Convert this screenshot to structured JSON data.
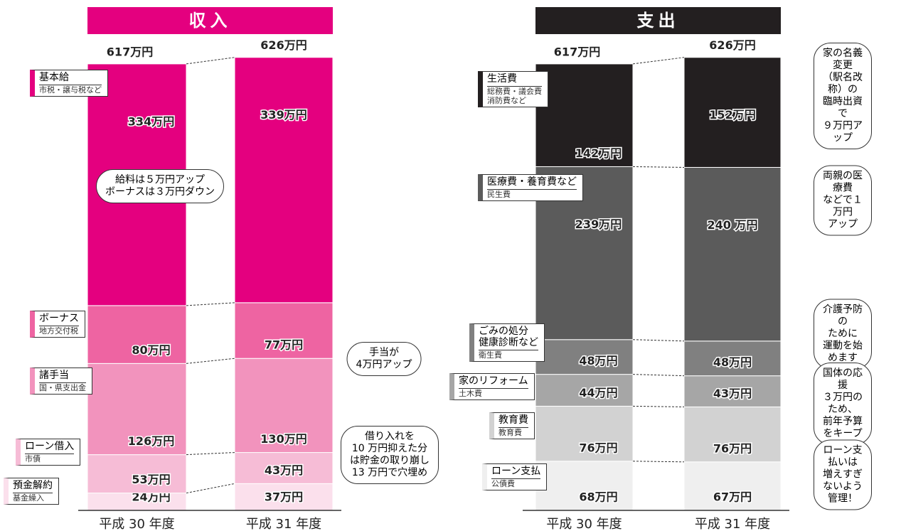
{
  "chart_data": [
    {
      "type": "stacked_bar",
      "title": "収入",
      "categories": [
        "平成 30 年度",
        "平成 31 年度"
      ],
      "totals": [
        617,
        626
      ],
      "total_labels": [
        "617万円",
        "626万円"
      ],
      "series": [
        {
          "name": "預金解約",
          "subtitle": "基金繰入",
          "color": "#fbe0ec",
          "values": [
            24,
            37
          ],
          "value_labels": [
            "24万円",
            "37万円"
          ]
        },
        {
          "name": "ローン借入",
          "subtitle": "市債",
          "color": "#f6bcd6",
          "values": [
            53,
            43
          ],
          "value_labels": [
            "53万円",
            "43万円"
          ]
        },
        {
          "name": "諸手当",
          "subtitle": "国・県支出金",
          "color": "#f293bd",
          "values": [
            126,
            130
          ],
          "value_labels": [
            "126万円",
            "130万円"
          ]
        },
        {
          "name": "ボーナス",
          "subtitle": "地方交付税",
          "color": "#ee64a2",
          "values": [
            80,
            77
          ],
          "value_labels": [
            "80万円",
            "77万円"
          ]
        },
        {
          "name": "基本給",
          "subtitle": "市税・譲与税など",
          "color": "#e4007f",
          "values": [
            334,
            339
          ],
          "value_labels": [
            "334万円",
            "339万円"
          ]
        }
      ],
      "annotations": [
        "給料は５万円アップ\nボーナスは３万円ダウン",
        "手当が\n4万円アップ",
        "借り入れを\n10 万円抑えた分\nは貯金の取り崩し\n13 万円で穴埋め"
      ]
    },
    {
      "type": "stacked_bar",
      "title": "支出",
      "categories": [
        "平成 30 年度",
        "平成 31 年度"
      ],
      "totals": [
        617,
        626
      ],
      "total_labels": [
        "617万円",
        "626万円"
      ],
      "series": [
        {
          "name": "ローン支払",
          "subtitle": "公債費",
          "color": "#efefef",
          "values": [
            68,
            67
          ],
          "value_labels": [
            "68万円",
            "67万円"
          ]
        },
        {
          "name": "教育費",
          "subtitle": "教育費",
          "color": "#d2d2d2",
          "values": [
            76,
            76
          ],
          "value_labels": [
            "76万円",
            "76万円"
          ]
        },
        {
          "name": "家のリフォーム",
          "subtitle": "土木費",
          "color": "#a6a6a6",
          "values": [
            44,
            43
          ],
          "value_labels": [
            "44万円",
            "43万円"
          ]
        },
        {
          "name": "ごみの処分\n健康診断など",
          "subtitle": "衛生費",
          "color": "#808080",
          "values": [
            48,
            48
          ],
          "value_labels": [
            "48万円",
            "48万円"
          ]
        },
        {
          "name": "医療費・養育費など",
          "subtitle": "民生費",
          "color": "#5b5b5b",
          "values": [
            239,
            240
          ],
          "value_labels": [
            "239万円",
            "240 万円"
          ]
        },
        {
          "name": "生活費",
          "subtitle": "総務費・議会費\n消防費など",
          "color": "#231f20",
          "values": [
            142,
            152
          ],
          "value_labels": [
            "142万円",
            "152万円"
          ]
        }
      ],
      "annotations": [
        "家の名義変更\n（駅名改称）の\n臨時出資で\n９万円アップ",
        "両親の医療費\nなどで１万円\nアップ",
        "介護予防の\nために\n運動を始めます",
        "国体の応援\n３万円のため、\n前年予算をキープ",
        "ローン支払いは\n増えすぎ\nないよう管理！"
      ]
    }
  ]
}
